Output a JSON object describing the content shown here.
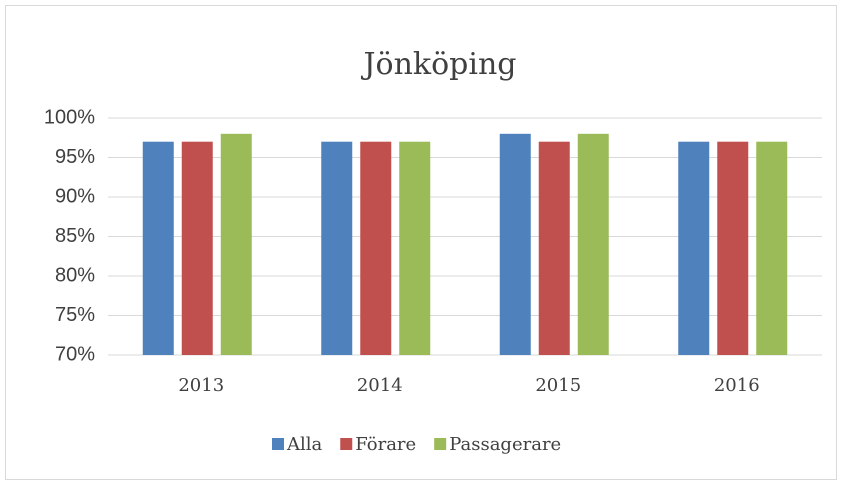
{
  "chart_data": {
    "type": "bar",
    "title": "Jönköping",
    "categories": [
      "2013",
      "2014",
      "2015",
      "2016"
    ],
    "series": [
      {
        "name": "Alla",
        "color": "#4f81bd",
        "values": [
          97,
          97,
          98,
          97
        ]
      },
      {
        "name": "Förare",
        "color": "#c0504d",
        "values": [
          97,
          97,
          97,
          97
        ]
      },
      {
        "name": "Passagerare",
        "color": "#9bbb59",
        "values": [
          98,
          97,
          98,
          97
        ]
      }
    ],
    "ylim": [
      70,
      100
    ],
    "yticks": [
      {
        "value": 70,
        "label": "70%"
      },
      {
        "value": 75,
        "label": "75%"
      },
      {
        "value": 80,
        "label": "80%"
      },
      {
        "value": 85,
        "label": "85%"
      },
      {
        "value": 90,
        "label": "90%"
      },
      {
        "value": 95,
        "label": "95%"
      },
      {
        "value": 100,
        "label": "100%"
      }
    ],
    "grid": true,
    "legend": "bottom"
  }
}
